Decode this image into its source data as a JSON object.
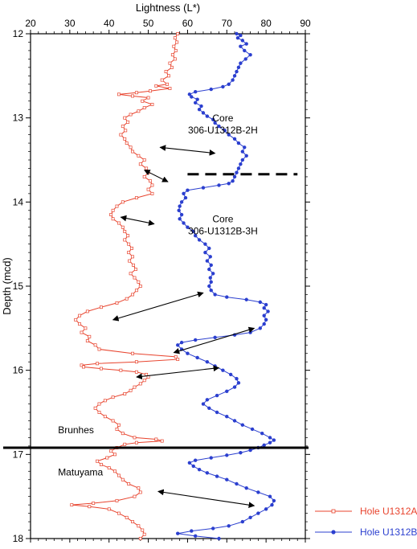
{
  "chart_data": {
    "type": "line",
    "orientation": "depth-down",
    "xlabel": "Lightness (L*)",
    "ylabel": "Depth (mcd)",
    "xlim": [
      20,
      90
    ],
    "ylim": [
      12,
      18
    ],
    "x_ticks": [
      "20",
      "30",
      "40",
      "50",
      "60",
      "70",
      "80",
      "90"
    ],
    "y_ticks": [
      "12",
      "13",
      "14",
      "15",
      "16",
      "17",
      "18"
    ],
    "grid": false,
    "legend_position": "bottom-right",
    "series": [
      {
        "name": "Hole U1312A",
        "color": "#e8432d",
        "marker": "open-square",
        "points": [
          [
            57.5,
            12.0
          ],
          [
            56.8,
            12.05
          ],
          [
            57.3,
            12.1
          ],
          [
            56.5,
            12.15
          ],
          [
            57.0,
            12.2
          ],
          [
            56.2,
            12.25
          ],
          [
            56.8,
            12.3
          ],
          [
            55.5,
            12.35
          ],
          [
            56.0,
            12.4
          ],
          [
            54.5,
            12.45
          ],
          [
            55.2,
            12.5
          ],
          [
            53.5,
            12.55
          ],
          [
            54.8,
            12.6
          ],
          [
            52.0,
            12.62
          ],
          [
            55.5,
            12.65
          ],
          [
            50.5,
            12.68
          ],
          [
            47.0,
            12.7
          ],
          [
            42.5,
            12.72
          ],
          [
            46.0,
            12.74
          ],
          [
            50.0,
            12.76
          ],
          [
            48.5,
            12.8
          ],
          [
            51.0,
            12.84
          ],
          [
            49.0,
            12.88
          ],
          [
            47.5,
            12.92
          ],
          [
            45.5,
            12.96
          ],
          [
            44.0,
            13.0
          ],
          [
            44.8,
            13.05
          ],
          [
            43.5,
            13.1
          ],
          [
            44.2,
            13.15
          ],
          [
            43.0,
            13.2
          ],
          [
            44.0,
            13.25
          ],
          [
            44.5,
            13.3
          ],
          [
            45.5,
            13.35
          ],
          [
            46.0,
            13.4
          ],
          [
            47.5,
            13.45
          ],
          [
            49.0,
            13.5
          ],
          [
            48.0,
            13.55
          ],
          [
            49.5,
            13.6
          ],
          [
            50.0,
            13.65
          ],
          [
            49.0,
            13.7
          ],
          [
            50.5,
            13.75
          ],
          [
            51.0,
            13.8
          ],
          [
            50.0,
            13.85
          ],
          [
            51.0,
            13.9
          ],
          [
            47.0,
            13.95
          ],
          [
            43.5,
            14.0
          ],
          [
            42.0,
            14.05
          ],
          [
            41.0,
            14.1
          ],
          [
            40.5,
            14.15
          ],
          [
            41.0,
            14.2
          ],
          [
            42.5,
            14.25
          ],
          [
            43.5,
            14.3
          ],
          [
            44.0,
            14.35
          ],
          [
            44.8,
            14.4
          ],
          [
            44.0,
            14.45
          ],
          [
            45.0,
            14.5
          ],
          [
            45.8,
            14.55
          ],
          [
            45.0,
            14.6
          ],
          [
            46.0,
            14.65
          ],
          [
            45.2,
            14.7
          ],
          [
            46.2,
            14.75
          ],
          [
            46.8,
            14.8
          ],
          [
            45.5,
            14.85
          ],
          [
            46.5,
            14.9
          ],
          [
            47.5,
            14.95
          ],
          [
            48.0,
            15.0
          ],
          [
            47.0,
            15.05
          ],
          [
            46.0,
            15.1
          ],
          [
            44.5,
            15.15
          ],
          [
            42.0,
            15.2
          ],
          [
            38.0,
            15.25
          ],
          [
            34.5,
            15.3
          ],
          [
            32.5,
            15.35
          ],
          [
            31.5,
            15.4
          ],
          [
            32.5,
            15.45
          ],
          [
            34.0,
            15.5
          ],
          [
            33.0,
            15.55
          ],
          [
            35.0,
            15.6
          ],
          [
            34.5,
            15.65
          ],
          [
            36.5,
            15.7
          ],
          [
            37.5,
            15.75
          ],
          [
            46.0,
            15.8
          ],
          [
            57.0,
            15.84
          ],
          [
            57.5,
            15.87
          ],
          [
            47.0,
            15.9
          ],
          [
            37.0,
            15.92
          ],
          [
            33.0,
            15.94
          ],
          [
            33.5,
            15.96
          ],
          [
            38.0,
            15.98
          ],
          [
            43.0,
            16.0
          ],
          [
            47.0,
            16.02
          ],
          [
            49.5,
            16.05
          ],
          [
            50.0,
            16.08
          ],
          [
            49.0,
            16.12
          ],
          [
            48.0,
            16.16
          ],
          [
            46.5,
            16.2
          ],
          [
            45.5,
            16.24
          ],
          [
            44.0,
            16.28
          ],
          [
            41.0,
            16.32
          ],
          [
            39.0,
            16.36
          ],
          [
            37.5,
            16.4
          ],
          [
            36.5,
            16.45
          ],
          [
            37.5,
            16.5
          ],
          [
            39.0,
            16.55
          ],
          [
            41.0,
            16.6
          ],
          [
            42.5,
            16.65
          ],
          [
            42.0,
            16.7
          ],
          [
            43.5,
            16.75
          ],
          [
            46.5,
            16.8
          ],
          [
            52.0,
            16.82
          ],
          [
            53.5,
            16.84
          ],
          [
            47.0,
            16.86
          ],
          [
            44.0,
            16.88
          ],
          [
            42.0,
            16.92
          ],
          [
            40.5,
            16.96
          ],
          [
            41.5,
            17.0
          ],
          [
            39.5,
            17.04
          ],
          [
            37.0,
            17.08
          ],
          [
            38.0,
            17.12
          ],
          [
            40.0,
            17.16
          ],
          [
            41.5,
            17.2
          ],
          [
            42.5,
            17.25
          ],
          [
            43.5,
            17.3
          ],
          [
            45.0,
            17.35
          ],
          [
            47.5,
            17.4
          ],
          [
            48.0,
            17.45
          ],
          [
            46.5,
            17.5
          ],
          [
            42.0,
            17.55
          ],
          [
            36.0,
            17.58
          ],
          [
            30.5,
            17.6
          ],
          [
            35.0,
            17.62
          ],
          [
            40.0,
            17.65
          ],
          [
            42.5,
            17.7
          ],
          [
            44.5,
            17.75
          ],
          [
            46.0,
            17.8
          ],
          [
            47.5,
            17.85
          ],
          [
            48.5,
            17.9
          ],
          [
            49.0,
            17.95
          ],
          [
            48.0,
            18.0
          ]
        ]
      },
      {
        "name": "Hole U1312B",
        "color": "#2b3fcf",
        "marker": "filled-circle",
        "points": [
          [
            72.5,
            12.0
          ],
          [
            73.5,
            12.02
          ],
          [
            72.8,
            12.05
          ],
          [
            74.0,
            12.08
          ],
          [
            75.0,
            12.12
          ],
          [
            73.5,
            12.15
          ],
          [
            74.5,
            12.2
          ],
          [
            76.0,
            12.25
          ],
          [
            74.8,
            12.3
          ],
          [
            73.5,
            12.35
          ],
          [
            73.0,
            12.4
          ],
          [
            72.5,
            12.45
          ],
          [
            72.0,
            12.5
          ],
          [
            71.5,
            12.55
          ],
          [
            70.5,
            12.6
          ],
          [
            69.0,
            12.63
          ],
          [
            66.0,
            12.66
          ],
          [
            62.0,
            12.69
          ],
          [
            60.5,
            12.72
          ],
          [
            61.0,
            12.75
          ],
          [
            62.5,
            12.78
          ],
          [
            62.0,
            12.82
          ],
          [
            63.5,
            12.86
          ],
          [
            63.0,
            12.9
          ],
          [
            64.0,
            12.94
          ],
          [
            65.0,
            12.98
          ],
          [
            66.5,
            13.02
          ],
          [
            67.0,
            13.06
          ],
          [
            68.0,
            13.1
          ],
          [
            69.5,
            13.15
          ],
          [
            70.5,
            13.2
          ],
          [
            72.0,
            13.25
          ],
          [
            73.0,
            13.3
          ],
          [
            74.5,
            13.35
          ],
          [
            74.0,
            13.4
          ],
          [
            75.0,
            13.45
          ],
          [
            74.0,
            13.5
          ],
          [
            73.5,
            13.55
          ],
          [
            73.0,
            13.6
          ],
          [
            72.5,
            13.65
          ],
          [
            72.0,
            13.7
          ],
          [
            71.5,
            13.75
          ],
          [
            70.5,
            13.78
          ],
          [
            68.0,
            13.8
          ],
          [
            64.0,
            13.83
          ],
          [
            60.0,
            13.86
          ],
          [
            59.0,
            13.9
          ],
          [
            59.5,
            13.95
          ],
          [
            58.5,
            14.0
          ],
          [
            58.0,
            14.05
          ],
          [
            57.8,
            14.1
          ],
          [
            58.5,
            14.15
          ],
          [
            58.0,
            14.2
          ],
          [
            59.0,
            14.25
          ],
          [
            60.0,
            14.3
          ],
          [
            61.5,
            14.35
          ],
          [
            62.0,
            14.4
          ],
          [
            63.0,
            14.45
          ],
          [
            64.5,
            14.5
          ],
          [
            65.5,
            14.55
          ],
          [
            64.5,
            14.6
          ],
          [
            65.8,
            14.65
          ],
          [
            65.0,
            14.7
          ],
          [
            66.0,
            14.75
          ],
          [
            65.5,
            14.8
          ],
          [
            66.5,
            14.85
          ],
          [
            65.8,
            14.9
          ],
          [
            66.0,
            14.95
          ],
          [
            65.5,
            15.0
          ],
          [
            66.0,
            15.05
          ],
          [
            67.0,
            15.1
          ],
          [
            70.0,
            15.13
          ],
          [
            75.0,
            15.16
          ],
          [
            78.5,
            15.19
          ],
          [
            80.0,
            15.22
          ],
          [
            79.5,
            15.26
          ],
          [
            80.5,
            15.3
          ],
          [
            79.5,
            15.35
          ],
          [
            80.0,
            15.4
          ],
          [
            79.5,
            15.45
          ],
          [
            78.5,
            15.5
          ],
          [
            76.0,
            15.55
          ],
          [
            72.0,
            15.58
          ],
          [
            67.0,
            15.61
          ],
          [
            62.0,
            15.64
          ],
          [
            58.5,
            15.67
          ],
          [
            57.5,
            15.7
          ],
          [
            58.5,
            15.75
          ],
          [
            60.0,
            15.8
          ],
          [
            62.5,
            15.85
          ],
          [
            65.0,
            15.9
          ],
          [
            67.0,
            15.95
          ],
          [
            69.0,
            16.0
          ],
          [
            71.0,
            16.05
          ],
          [
            72.5,
            16.1
          ],
          [
            73.0,
            16.15
          ],
          [
            72.0,
            16.2
          ],
          [
            70.0,
            16.25
          ],
          [
            67.5,
            16.3
          ],
          [
            65.0,
            16.35
          ],
          [
            64.0,
            16.4
          ],
          [
            65.5,
            16.45
          ],
          [
            67.5,
            16.5
          ],
          [
            70.0,
            16.55
          ],
          [
            72.0,
            16.6
          ],
          [
            74.0,
            16.65
          ],
          [
            76.5,
            16.7
          ],
          [
            79.0,
            16.75
          ],
          [
            81.0,
            16.8
          ],
          [
            82.0,
            16.83
          ],
          [
            81.0,
            16.86
          ],
          [
            79.5,
            16.89
          ],
          [
            78.0,
            16.92
          ],
          [
            76.0,
            16.95
          ],
          [
            73.5,
            16.98
          ],
          [
            70.0,
            17.01
          ],
          [
            66.0,
            17.04
          ],
          [
            62.0,
            17.07
          ],
          [
            60.5,
            17.1
          ],
          [
            61.5,
            17.14
          ],
          [
            63.0,
            17.18
          ],
          [
            65.0,
            17.22
          ],
          [
            67.5,
            17.26
          ],
          [
            70.0,
            17.3
          ],
          [
            72.5,
            17.35
          ],
          [
            75.0,
            17.4
          ],
          [
            78.0,
            17.45
          ],
          [
            81.0,
            17.5
          ],
          [
            82.0,
            17.55
          ],
          [
            81.5,
            17.6
          ],
          [
            80.0,
            17.65
          ],
          [
            78.0,
            17.7
          ],
          [
            76.0,
            17.75
          ],
          [
            74.0,
            17.8
          ],
          [
            70.5,
            17.85
          ],
          [
            66.5,
            17.88
          ],
          [
            61.0,
            17.91
          ],
          [
            57.5,
            17.94
          ],
          [
            62.0,
            17.97
          ],
          [
            68.0,
            18.0
          ]
        ]
      }
    ],
    "boundaries": [
      {
        "depth": 13.67,
        "style": "dashed",
        "xfrom": 60,
        "xto": 88
      },
      {
        "depth": 16.92,
        "style": "solid",
        "xfrom": 20,
        "xto": 90
      }
    ],
    "correlation_arrows": [
      {
        "from": [
          53.0,
          13.35
        ],
        "to": [
          67.0,
          13.42
        ]
      },
      {
        "from": [
          49.0,
          13.62
        ],
        "to": [
          55.0,
          13.76
        ]
      },
      {
        "from": [
          43.0,
          14.18
        ],
        "to": [
          51.5,
          14.26
        ]
      },
      {
        "from": [
          64.0,
          15.08
        ],
        "to": [
          41.0,
          15.4
        ]
      },
      {
        "from": [
          77.0,
          15.5
        ],
        "to": [
          56.5,
          15.79
        ]
      },
      {
        "from": [
          47.0,
          16.08
        ],
        "to": [
          68.0,
          15.97
        ]
      },
      {
        "from": [
          52.5,
          17.44
        ],
        "to": [
          77.0,
          17.61
        ]
      }
    ],
    "annotations": [
      {
        "lines": [
          "Core",
          "306-U1312B-2H"
        ],
        "x": 69,
        "depth": 13.04
      },
      {
        "lines": [
          "Core",
          "306-U1312B-3H"
        ],
        "x": 69,
        "depth": 14.24
      },
      {
        "lines": [
          "Brunhes"
        ],
        "x": 27,
        "depth": 16.75
      },
      {
        "lines": [
          "Matuyama"
        ],
        "x": 27,
        "depth": 17.25
      }
    ]
  }
}
